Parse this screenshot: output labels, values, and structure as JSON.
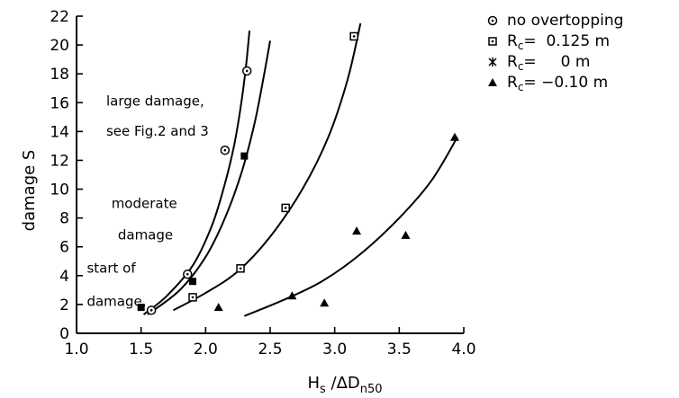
{
  "chart_data": {
    "type": "scatter",
    "title": "",
    "xlabel": "Hs /ΔDn50",
    "xlabel_parts": {
      "main": "H",
      "sub1": "s",
      "mid": " /ΔD",
      "sub2": "n50"
    },
    "ylabel": "damage S",
    "xlim": [
      1.0,
      4.0
    ],
    "ylim": [
      0,
      22
    ],
    "x_ticks": [
      "1.0",
      "1.5",
      "2.0",
      "2.5",
      "3.0",
      "3.5",
      "4.0"
    ],
    "y_ticks": [
      "0",
      "2",
      "4",
      "6",
      "8",
      "10",
      "12",
      "14",
      "16",
      "18",
      "20",
      "22"
    ],
    "grid": false,
    "legend_position": "top-right",
    "series": [
      {
        "name": "no overtopping",
        "marker": "circle-dot",
        "points": [
          [
            1.58,
            1.6
          ],
          [
            1.86,
            4.1
          ],
          [
            2.15,
            12.7
          ],
          [
            2.32,
            18.2
          ]
        ]
      },
      {
        "name": "Rc=  0.125 m",
        "legend_parts": {
          "main": "R",
          "sub": "c",
          "rest": "=  0.125 m"
        },
        "marker": "square-dot",
        "points": [
          [
            1.9,
            2.5
          ],
          [
            2.27,
            4.5
          ],
          [
            2.62,
            8.7
          ],
          [
            3.15,
            20.6
          ]
        ]
      },
      {
        "name": "Rc=     0 m",
        "legend_parts": {
          "main": "R",
          "sub": "c",
          "rest": "=     0 m"
        },
        "marker": "filled-square",
        "points": [
          [
            1.5,
            1.8
          ],
          [
            1.9,
            3.6
          ],
          [
            2.3,
            12.3
          ]
        ]
      },
      {
        "name": "Rc= −0.10 m",
        "legend_parts": {
          "main": "R",
          "sub": "c",
          "rest": "= −0.10 m"
        },
        "marker": "filled-triangle",
        "points": [
          [
            2.1,
            1.8
          ],
          [
            2.67,
            2.6
          ],
          [
            2.92,
            2.1
          ],
          [
            3.17,
            7.1
          ],
          [
            3.55,
            6.8
          ],
          [
            3.93,
            13.6
          ]
        ]
      }
    ],
    "curves": [
      {
        "points": [
          [
            1.52,
            1.3
          ],
          [
            1.7,
            2.6
          ],
          [
            1.9,
            4.7
          ],
          [
            2.05,
            7.5
          ],
          [
            2.15,
            10.4
          ],
          [
            2.22,
            13.0
          ],
          [
            2.27,
            15.6
          ],
          [
            2.31,
            18.3
          ],
          [
            2.34,
            21.0
          ]
        ]
      },
      {
        "points": [
          [
            1.55,
            1.3
          ],
          [
            1.8,
            3.0
          ],
          [
            2.0,
            5.3
          ],
          [
            2.15,
            8.0
          ],
          [
            2.28,
            11.2
          ],
          [
            2.38,
            14.6
          ],
          [
            2.45,
            17.8
          ],
          [
            2.5,
            20.3
          ]
        ]
      },
      {
        "points": [
          [
            1.75,
            1.6
          ],
          [
            2.0,
            2.8
          ],
          [
            2.25,
            4.3
          ],
          [
            2.5,
            6.7
          ],
          [
            2.75,
            10.0
          ],
          [
            2.95,
            13.6
          ],
          [
            3.1,
            17.6
          ],
          [
            3.2,
            21.5
          ]
        ]
      },
      {
        "points": [
          [
            2.3,
            1.2
          ],
          [
            2.6,
            2.3
          ],
          [
            2.9,
            3.6
          ],
          [
            3.2,
            5.5
          ],
          [
            3.5,
            8.0
          ],
          [
            3.75,
            10.6
          ],
          [
            3.95,
            13.6
          ]
        ]
      }
    ],
    "annotations": [
      {
        "text": "large damage,",
        "x": 1.23,
        "y": 15.8
      },
      {
        "text": "see Fig.2 and 3",
        "x": 1.23,
        "y": 13.7
      },
      {
        "text": "moderate",
        "x": 1.27,
        "y": 8.7
      },
      {
        "text": "damage",
        "x": 1.32,
        "y": 6.5
      },
      {
        "text": "start of",
        "x": 1.08,
        "y": 4.2
      },
      {
        "text": "damage,",
        "x": 1.08,
        "y": 1.9
      }
    ]
  }
}
